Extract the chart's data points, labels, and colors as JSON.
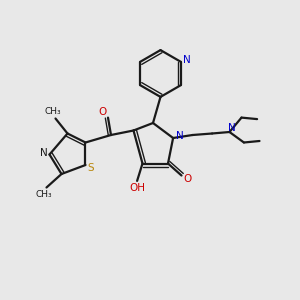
{
  "background_color": "#e8e8e8",
  "bond_color": "#1a1a1a",
  "nitrogen_color": "#0000cc",
  "oxygen_color": "#cc0000",
  "sulfur_color": "#b8860b",
  "figsize": [
    3.0,
    3.0
  ],
  "dpi": 100,
  "xlim": [
    0,
    10
  ],
  "ylim": [
    0,
    10
  ]
}
